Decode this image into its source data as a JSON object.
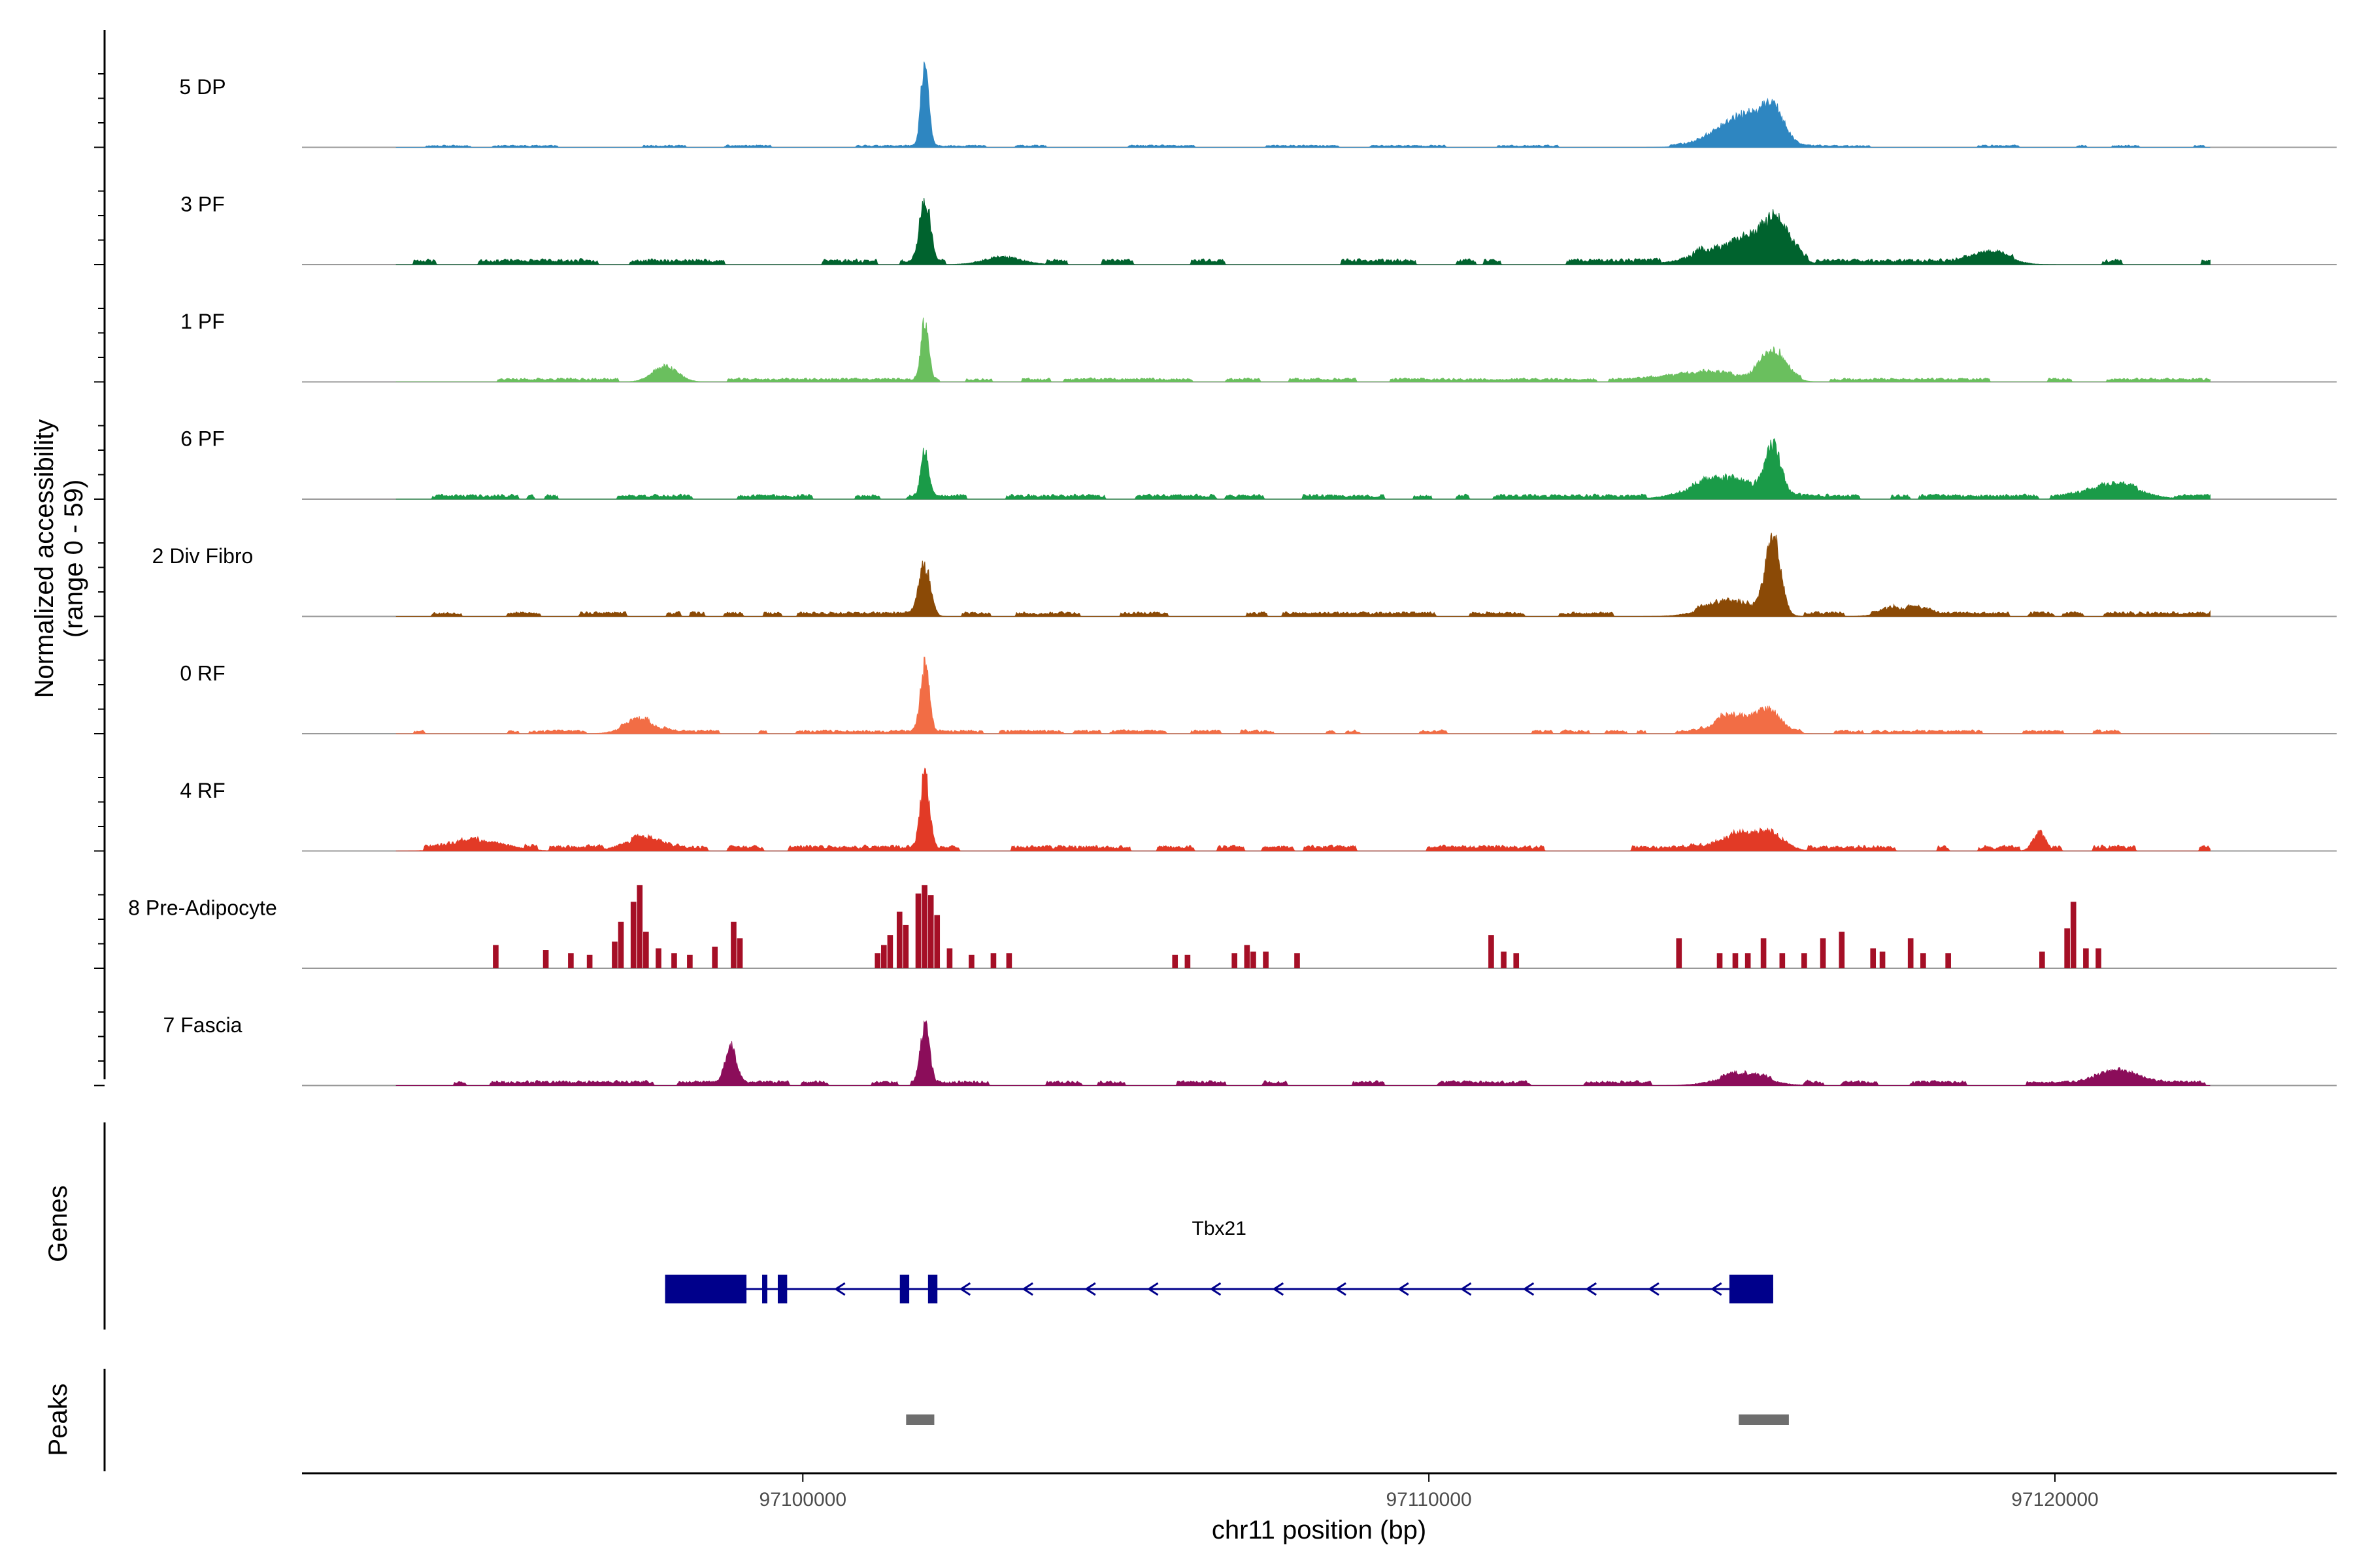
{
  "chart_data": {
    "type": "area",
    "title": "",
    "region": {
      "chromosome": "chr11",
      "start": 97092000,
      "end": 97124500
    },
    "xlabel": "chr11 position (bp)",
    "xticks": [
      {
        "value": 97100000,
        "label": "97100000"
      },
      {
        "value": 97110000,
        "label": "97110000"
      },
      {
        "value": 97120000,
        "label": "97120000"
      }
    ],
    "ylabel_line1": "Normalized accessibility",
    "ylabel_line2": "(range 0 - 59)",
    "ylim": [
      0,
      59
    ],
    "coverage_span": [
      97093500,
      97122500
    ],
    "series": [
      {
        "name": "5 DP",
        "color": "#2e86c1",
        "profile": "sparse",
        "bg": 1.2,
        "seed": 11,
        "peaks": [
          [
            97101950,
            55,
            60
          ],
          [
            97114900,
            12,
            400
          ],
          [
            97115500,
            20,
            180
          ],
          [
            97115100,
            10,
            300
          ]
        ]
      },
      {
        "name": "3 PF",
        "color": "#00632e",
        "profile": "dense",
        "bg": 3,
        "seed": 23,
        "peaks": [
          [
            97101950,
            40,
            80
          ],
          [
            97115500,
            25,
            250
          ],
          [
            97114800,
            12,
            500
          ],
          [
            97103200,
            5,
            300
          ],
          [
            97119000,
            6,
            300
          ]
        ]
      },
      {
        "name": "1 PF",
        "color": "#6abf5e",
        "profile": "dense",
        "bg": 2,
        "seed": 37,
        "peaks": [
          [
            97101950,
            38,
            60
          ],
          [
            97115500,
            18,
            200
          ],
          [
            97097800,
            10,
            200
          ],
          [
            97114500,
            5,
            600
          ]
        ]
      },
      {
        "name": "6 PF",
        "color": "#1a9b48",
        "profile": "dense",
        "bg": 2.5,
        "seed": 41,
        "peaks": [
          [
            97101950,
            30,
            60
          ],
          [
            97115500,
            30,
            120
          ],
          [
            97114700,
            12,
            500
          ],
          [
            97121000,
            8,
            400
          ]
        ]
      },
      {
        "name": "2 Div Fibro",
        "color": "#8b4a06",
        "profile": "dense",
        "bg": 2.5,
        "seed": 53,
        "peaks": [
          [
            97101950,
            32,
            90
          ],
          [
            97115500,
            48,
            120
          ],
          [
            97114800,
            8,
            400
          ],
          [
            97117600,
            5,
            300
          ]
        ]
      },
      {
        "name": "0 RF",
        "color": "#f26d45",
        "profile": "dense",
        "bg": 2,
        "seed": 67,
        "peaks": [
          [
            97101950,
            42,
            70
          ],
          [
            97115400,
            14,
            200
          ],
          [
            97114800,
            11,
            250
          ],
          [
            97097400,
            8,
            250
          ]
        ]
      },
      {
        "name": "4 RF",
        "color": "#e23a26",
        "profile": "dense",
        "bg": 3,
        "seed": 71,
        "peaks": [
          [
            97101950,
            46,
            70
          ],
          [
            97115400,
            12,
            250
          ],
          [
            97114800,
            8,
            300
          ],
          [
            97119750,
            12,
            100
          ],
          [
            97094900,
            6,
            400
          ],
          [
            97097400,
            7,
            300
          ]
        ]
      },
      {
        "name": "8 Pre-Adipocyte",
        "color": "#a50f26",
        "profile": "blocky",
        "seed": 83,
        "blocks": [
          [
            97095050,
            14
          ],
          [
            97095850,
            11
          ],
          [
            97096250,
            9
          ],
          [
            97096550,
            8
          ],
          [
            97096950,
            16
          ],
          [
            97097050,
            28
          ],
          [
            97097250,
            40
          ],
          [
            97097350,
            50
          ],
          [
            97097450,
            22
          ],
          [
            97097650,
            12
          ],
          [
            97097900,
            9
          ],
          [
            97098150,
            8
          ],
          [
            97098550,
            13
          ],
          [
            97098850,
            28
          ],
          [
            97098950,
            18
          ],
          [
            97101150,
            9
          ],
          [
            97101250,
            14
          ],
          [
            97101350,
            20
          ],
          [
            97101500,
            34
          ],
          [
            97101600,
            26
          ],
          [
            97101800,
            45
          ],
          [
            97101900,
            50
          ],
          [
            97102000,
            44
          ],
          [
            97102100,
            32
          ],
          [
            97102300,
            12
          ],
          [
            97102650,
            8
          ],
          [
            97103000,
            9
          ],
          [
            97103250,
            9
          ],
          [
            97105900,
            8
          ],
          [
            97106100,
            8
          ],
          [
            97106850,
            9
          ],
          [
            97107050,
            14
          ],
          [
            97107150,
            10
          ],
          [
            97107350,
            10
          ],
          [
            97107850,
            9
          ],
          [
            97110950,
            20
          ],
          [
            97111150,
            10
          ],
          [
            97111350,
            9
          ],
          [
            97113950,
            18
          ],
          [
            97114600,
            9
          ],
          [
            97114850,
            9
          ],
          [
            97115050,
            9
          ],
          [
            97115300,
            18
          ],
          [
            97115600,
            9
          ],
          [
            97115950,
            9
          ],
          [
            97116250,
            18
          ],
          [
            97116550,
            22
          ],
          [
            97117050,
            12
          ],
          [
            97117200,
            10
          ],
          [
            97117650,
            18
          ],
          [
            97117850,
            9
          ],
          [
            97118250,
            9
          ],
          [
            97119750,
            10
          ],
          [
            97120150,
            24
          ],
          [
            97120250,
            40
          ],
          [
            97120450,
            12
          ],
          [
            97120650,
            12
          ]
        ]
      },
      {
        "name": "7 Fascia",
        "color": "#8b0d5a",
        "profile": "dense",
        "bg": 2.5,
        "seed": 97,
        "peaks": [
          [
            97101950,
            40,
            70
          ],
          [
            97098850,
            22,
            90
          ],
          [
            97115000,
            6,
            400
          ],
          [
            97121000,
            8,
            300
          ]
        ]
      }
    ],
    "gene_track": {
      "title": "Genes",
      "gene": "Tbx21",
      "start": 97097800,
      "end": 97115500,
      "strand": "-",
      "color": "#00008b",
      "exons": [
        [
          97097800,
          97099100
        ],
        [
          97099350,
          97099430
        ],
        [
          97099600,
          97099750
        ],
        [
          97101550,
          97101700
        ],
        [
          97102000,
          97102150
        ],
        [
          97114800,
          97115500
        ]
      ]
    },
    "peak_track": {
      "title": "Peaks",
      "color": "#6e6e6e",
      "peaks": [
        [
          97101650,
          97102100
        ],
        [
          97114950,
          97115750
        ]
      ]
    }
  }
}
